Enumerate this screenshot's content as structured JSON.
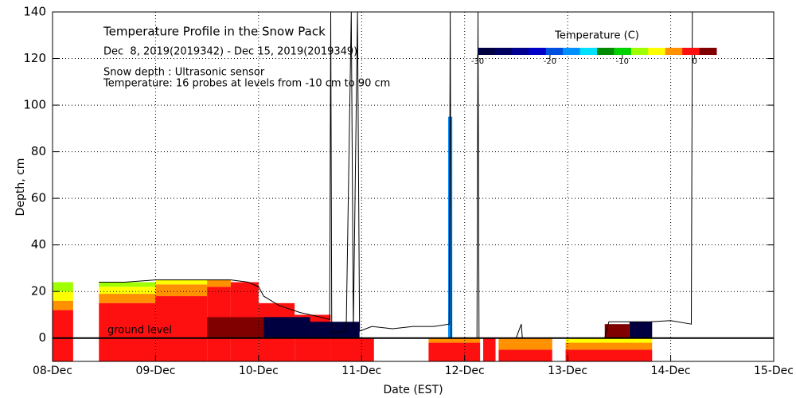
{
  "chart_data": {
    "type": "line",
    "title": "Temperature Profile in the Snow Pack",
    "subtitle": "Dec  8, 2019(2019342) - Dec 15, 2019(2019349)",
    "annotations": [
      "Snow depth : Ultrasonic sensor",
      "Temperature: 16 probes at levels from -10 cm to 90 cm"
    ],
    "ground_label": "ground level",
    "x_label": "Date (EST)",
    "y_label": "Depth, cm",
    "xlim": [
      8,
      15
    ],
    "xticks": [
      {
        "value": 8,
        "label": "08-Dec"
      },
      {
        "value": 9,
        "label": "09-Dec"
      },
      {
        "value": 10,
        "label": "10-Dec"
      },
      {
        "value": 11,
        "label": "11-Dec"
      },
      {
        "value": 12,
        "label": "12-Dec"
      },
      {
        "value": 13,
        "label": "13-Dec"
      },
      {
        "value": 14,
        "label": "14-Dec"
      },
      {
        "value": 15,
        "label": "15-Dec"
      }
    ],
    "ylim": [
      -10,
      140
    ],
    "yticks": [
      0,
      20,
      40,
      60,
      80,
      100,
      120,
      140
    ],
    "grid": true,
    "color": "#000000",
    "x": [
      8.45,
      8.7,
      9.0,
      9.5,
      9.73,
      9.9,
      10.0,
      10.05,
      10.2,
      10.4,
      10.6,
      10.69,
      10.7,
      10.71,
      10.85,
      10.9,
      10.92,
      10.96,
      10.98,
      11.1,
      11.3,
      11.5,
      11.7,
      11.85,
      11.86,
      11.87,
      12.12,
      12.13,
      12.14,
      12.5,
      12.55,
      12.56,
      13.36,
      13.4,
      13.8,
      14.0,
      14.2,
      14.21
    ],
    "values": [
      24,
      24,
      25,
      25,
      25,
      24,
      22,
      18,
      14,
      11,
      9,
      8,
      140,
      2,
      3,
      140,
      4,
      140,
      3,
      5,
      4,
      5,
      5,
      6,
      140,
      0,
      0,
      140,
      0,
      0,
      6,
      0,
      0,
      7,
      7,
      7.5,
      6,
      140
    ],
    "colorbar": {
      "title": "Temperature (C)",
      "clim": [
        -30,
        3
      ],
      "ticks": [
        -30,
        -20,
        -10,
        0
      ],
      "colors": [
        "#000040",
        "#000060",
        "#000090",
        "#0000c8",
        "#0050e0",
        "#0090ff",
        "#00e0ff",
        "#008c00",
        "#00d200",
        "#a0ff00",
        "#ffff00",
        "#ff9000",
        "#ff1010",
        "#800000"
      ]
    },
    "temperature_cells": [
      {
        "x": [
          8.0,
          8.2
        ],
        "depth": [
          20,
          24
        ],
        "temp": -7
      },
      {
        "x": [
          8.0,
          8.2
        ],
        "depth": [
          16,
          20
        ],
        "temp": -5
      },
      {
        "x": [
          8.0,
          8.2
        ],
        "depth": [
          12,
          16
        ],
        "temp": -3
      },
      {
        "x": [
          8.0,
          8.2
        ],
        "depth": [
          -10,
          12
        ],
        "temp": -1
      },
      {
        "x": [
          8.45,
          9.0
        ],
        "depth": [
          22,
          24
        ],
        "temp": -7
      },
      {
        "x": [
          8.45,
          9.0
        ],
        "depth": [
          19,
          22
        ],
        "temp": -5
      },
      {
        "x": [
          8.45,
          9.0
        ],
        "depth": [
          15,
          19
        ],
        "temp": -3
      },
      {
        "x": [
          8.45,
          9.0
        ],
        "depth": [
          -10,
          15
        ],
        "temp": -1
      },
      {
        "x": [
          9.0,
          9.5
        ],
        "depth": [
          23,
          25
        ],
        "temp": -5
      },
      {
        "x": [
          9.0,
          9.5
        ],
        "depth": [
          18,
          23
        ],
        "temp": -3
      },
      {
        "x": [
          9.0,
          9.5
        ],
        "depth": [
          -10,
          18
        ],
        "temp": -1
      },
      {
        "x": [
          9.5,
          9.73
        ],
        "depth": [
          22,
          25
        ],
        "temp": -3
      },
      {
        "x": [
          9.5,
          9.73
        ],
        "depth": [
          -10,
          22
        ],
        "temp": -1
      },
      {
        "x": [
          9.73,
          10.0
        ],
        "depth": [
          -10,
          24
        ],
        "temp": -1
      },
      {
        "x": [
          10.0,
          10.35
        ],
        "depth": [
          -10,
          15
        ],
        "temp": -1
      },
      {
        "x": [
          10.35,
          10.7
        ],
        "depth": [
          -10,
          10
        ],
        "temp": -1
      },
      {
        "x": [
          10.7,
          11.12
        ],
        "depth": [
          -10,
          0
        ],
        "temp": -1
      },
      {
        "x": [
          9.5,
          10.05
        ],
        "depth": [
          0,
          9
        ],
        "temp": 1
      },
      {
        "x": [
          10.05,
          10.5
        ],
        "depth": [
          0,
          9
        ],
        "temp": -28
      },
      {
        "x": [
          10.5,
          10.98
        ],
        "depth": [
          0,
          7
        ],
        "temp": -28
      },
      {
        "x": [
          11.65,
          12.15
        ],
        "depth": [
          -2,
          0
        ],
        "temp": -3
      },
      {
        "x": [
          11.65,
          12.15
        ],
        "depth": [
          -10,
          -2
        ],
        "temp": -1
      },
      {
        "x": [
          11.84,
          11.88
        ],
        "depth": [
          0,
          95
        ],
        "temp": -17
      },
      {
        "x": [
          12.18,
          12.3
        ],
        "depth": [
          -10,
          0
        ],
        "temp": -1
      },
      {
        "x": [
          12.33,
          12.85
        ],
        "depth": [
          -2,
          0
        ],
        "temp": -4
      },
      {
        "x": [
          12.33,
          12.85
        ],
        "depth": [
          -5,
          -2
        ],
        "temp": -3
      },
      {
        "x": [
          12.33,
          12.85
        ],
        "depth": [
          -10,
          -5
        ],
        "temp": -1
      },
      {
        "x": [
          12.98,
          13.82
        ],
        "depth": [
          -2,
          0
        ],
        "temp": -5
      },
      {
        "x": [
          12.98,
          13.82
        ],
        "depth": [
          -5,
          -2
        ],
        "temp": -3
      },
      {
        "x": [
          12.98,
          13.82
        ],
        "depth": [
          -10,
          -5
        ],
        "temp": -1
      },
      {
        "x": [
          13.36,
          13.6
        ],
        "depth": [
          0,
          6
        ],
        "temp": 1
      },
      {
        "x": [
          13.6,
          13.82
        ],
        "depth": [
          0,
          7
        ],
        "temp": -28
      }
    ]
  }
}
